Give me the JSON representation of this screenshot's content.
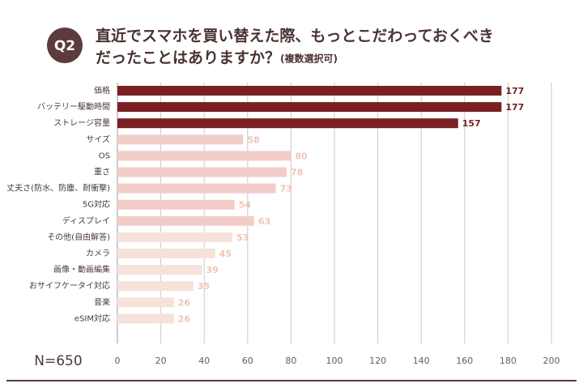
{
  "badge": "Q2",
  "chart_data": {
    "type": "bar",
    "orientation": "horizontal",
    "title": "直近でスマホを買い替えた際、もっとこだわっておくべき",
    "title_line2": "だったことはありますか？",
    "subtitle": "(複数選択可)",
    "annotation": "N=650",
    "categories": [
      "価格",
      "バッテリー駆動時間",
      "ストレージ容量",
      "サイズ",
      "OS",
      "重さ",
      "丈夫さ(防水、防塵、耐衝撃)",
      "5G対応",
      "ディスプレイ",
      "その他(自由解答)",
      "カメラ",
      "画像・動画編集",
      "おサイフケータイ対応",
      "音楽",
      "eSIM対応"
    ],
    "values": [
      177,
      177,
      157,
      58,
      80,
      78,
      73,
      54,
      63,
      53,
      45,
      39,
      35,
      26,
      26
    ],
    "colors": [
      "#7a1f22",
      "#7a1f22",
      "#7a1f22",
      "#f2cdc7",
      "#f2cdc7",
      "#f2cdc7",
      "#f2cdc7",
      "#f2cdc7",
      "#f2cdc7",
      "#f6e2da",
      "#f6e2da",
      "#f6e2da",
      "#f6e2da",
      "#f6e2da",
      "#f6e2da"
    ],
    "label_colors": [
      "#7a1f22",
      "#7a1f22",
      "#7a1f22",
      "#efc5b3",
      "#efc5b3",
      "#efc5b3",
      "#efc5b3",
      "#efc5b3",
      "#efc5b3",
      "#efc5b3",
      "#efc5b3",
      "#efc5b3",
      "#efc5b3",
      "#efc5b3",
      "#efc5b3"
    ],
    "xlim": [
      0,
      200
    ],
    "xticks": [
      0,
      20,
      40,
      60,
      80,
      100,
      120,
      140,
      160,
      180,
      200
    ],
    "grid": true
  }
}
